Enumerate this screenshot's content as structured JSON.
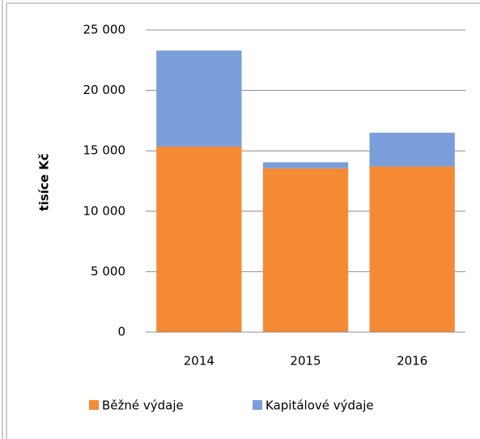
{
  "chart_data": {
    "type": "stacked_bar",
    "y_label": "tisíce Kč",
    "categories": [
      "2014",
      "2015",
      "2016"
    ],
    "series": [
      {
        "name": "Běžné výdaje",
        "color": "#f58a35",
        "values": [
          15350,
          13550,
          13700
        ]
      },
      {
        "name": "Kapitálové výdaje",
        "color": "#7a9ed9",
        "values": [
          7950,
          500,
          2800
        ]
      }
    ],
    "ylim": [
      0,
      25000
    ],
    "yticks": [
      0,
      {
        "value": 5000,
        "label": "5 000"
      },
      {
        "value": 10000,
        "label": "10 000"
      },
      {
        "value": 15000,
        "label": "15 000"
      },
      {
        "value": 20000,
        "label": "20 000"
      },
      {
        "value": 25000,
        "label": "25 000"
      }
    ],
    "grid": true,
    "legend": "bottom"
  }
}
